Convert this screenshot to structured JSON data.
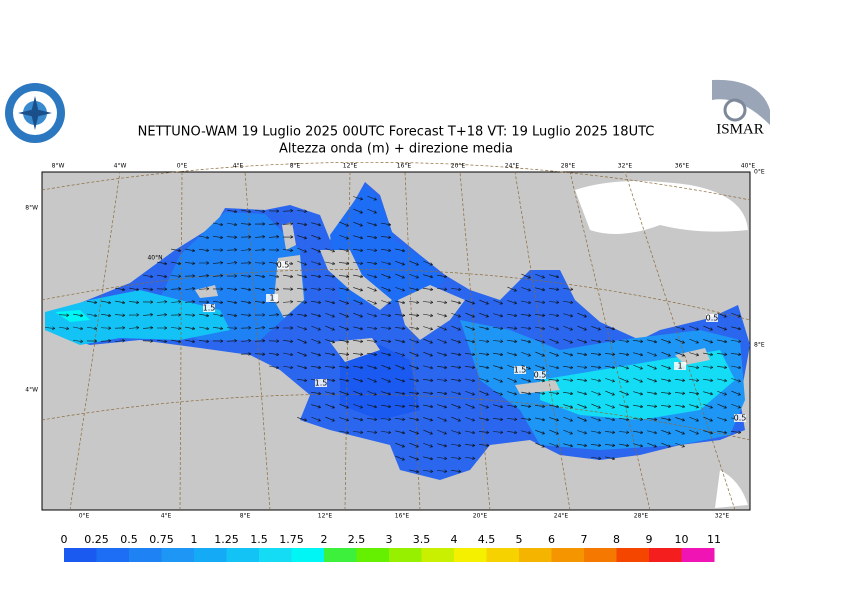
{
  "header": {
    "title": "NETTUNO-WAM  19  Luglio   2025 00UTC Forecast T+18 VT: 19  Luglio   2025 18UTC",
    "subtitle": "Altezza onda (m) + direzione media",
    "logo_right": "ISMAR"
  },
  "map": {
    "top_labels": [
      "8°W",
      "4°W",
      "0°E",
      "4°E",
      "8°E",
      "12°E",
      "16°E",
      "20°E",
      "24°E",
      "28°E",
      "32°E",
      "36°E",
      "40°E"
    ],
    "bottom_labels": [
      "0°E",
      "4°E",
      "8°E",
      "12°E",
      "16°E",
      "20°E",
      "24°E",
      "28°E",
      "32°E"
    ],
    "left_labels": [
      "8°W",
      "4°W"
    ],
    "right_labels": [
      "0°E",
      "8°E"
    ],
    "lat_label": "40°N",
    "contour_labels": [
      "1.5",
      "1",
      "0.5",
      "1.5",
      "1.5",
      "0.5",
      "1",
      "0.5",
      "0.5"
    ]
  },
  "legend": {
    "levels": [
      0,
      0.25,
      0.5,
      0.75,
      1,
      1.25,
      1.5,
      1.75,
      2,
      2.5,
      3,
      3.5,
      4,
      4.5,
      5,
      6,
      7,
      8,
      9,
      10,
      11
    ],
    "colors": [
      "#1a5af0",
      "#1e6ef5",
      "#1e82f5",
      "#1e96f5",
      "#14aaf5",
      "#14c3f5",
      "#14dcf5",
      "#00f5f5",
      "#3cf03c",
      "#64f000",
      "#96f000",
      "#c8f000",
      "#f5f000",
      "#f5d200",
      "#f5b400",
      "#f59600",
      "#f57800",
      "#f54600",
      "#f51e1e",
      "#f014b4"
    ]
  }
}
